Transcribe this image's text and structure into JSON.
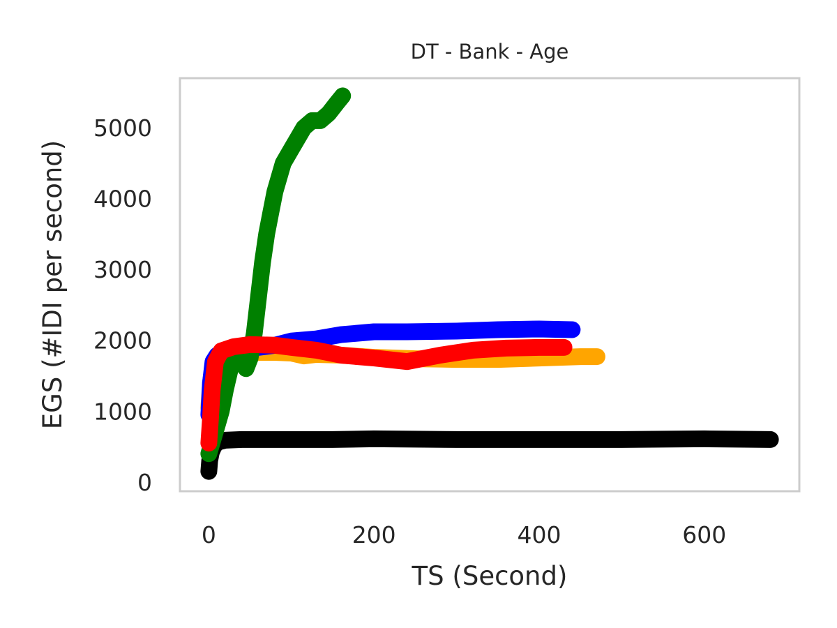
{
  "chart_data": {
    "type": "line",
    "title": "DT - Bank - Age",
    "xlabel": "TS (Second)",
    "ylabel": "EGS (#IDI  per second)",
    "xlim": [
      -35,
      715
    ],
    "ylim": [
      -130,
      5700
    ],
    "xticks": [
      0,
      200,
      400,
      600
    ],
    "yticks": [
      0,
      1000,
      2000,
      3000,
      4000,
      5000
    ],
    "xtick_labels": [
      "0",
      "200",
      "400",
      "600"
    ],
    "ytick_labels": [
      "0",
      "1000",
      "2000",
      "3000",
      "4000",
      "5000"
    ],
    "grid": false,
    "legend": "none",
    "series": [
      {
        "color": "#000000",
        "x": [
          0,
          1,
          3,
          6,
          10,
          20,
          40,
          80,
          150,
          200,
          300,
          400,
          500,
          600,
          680
        ],
        "y": [
          150,
          300,
          420,
          500,
          560,
          590,
          600,
          600,
          600,
          610,
          600,
          600,
          600,
          610,
          600
        ]
      },
      {
        "color": "#ffa500",
        "x": [
          0,
          2,
          5,
          10,
          20,
          40,
          60,
          80,
          100,
          115,
          130,
          160,
          200,
          250,
          300,
          350,
          400,
          450,
          470
        ],
        "y": [
          1050,
          1400,
          1650,
          1760,
          1800,
          1810,
          1830,
          1830,
          1820,
          1780,
          1800,
          1790,
          1760,
          1740,
          1730,
          1730,
          1750,
          1770,
          1770
        ]
      },
      {
        "color": "#0000ff",
        "x": [
          0,
          2,
          5,
          10,
          20,
          40,
          60,
          80,
          100,
          130,
          160,
          200,
          240,
          300,
          350,
          400,
          440
        ],
        "y": [
          950,
          1400,
          1700,
          1790,
          1850,
          1880,
          1900,
          1930,
          1990,
          2020,
          2080,
          2120,
          2120,
          2130,
          2150,
          2160,
          2150
        ]
      },
      {
        "color": "#008000",
        "x": [
          0,
          5,
          10,
          15,
          20,
          25,
          30,
          35,
          40,
          45,
          50,
          55,
          60,
          65,
          70,
          75,
          80,
          90,
          100,
          110,
          115,
          125,
          135,
          145,
          155,
          162
        ],
        "y": [
          400,
          600,
          800,
          1000,
          1300,
          1550,
          1750,
          1800,
          1700,
          1600,
          1750,
          2100,
          2600,
          3100,
          3500,
          3800,
          4100,
          4500,
          4700,
          4900,
          5000,
          5100,
          5100,
          5200,
          5350,
          5450
        ]
      },
      {
        "color": "#ff0000",
        "x": [
          0,
          2,
          4,
          8,
          15,
          30,
          50,
          80,
          100,
          130,
          160,
          200,
          240,
          280,
          320,
          360,
          400,
          430
        ],
        "y": [
          550,
          900,
          1300,
          1700,
          1850,
          1910,
          1940,
          1930,
          1900,
          1860,
          1790,
          1750,
          1700,
          1790,
          1860,
          1890,
          1900,
          1900
        ]
      }
    ]
  }
}
